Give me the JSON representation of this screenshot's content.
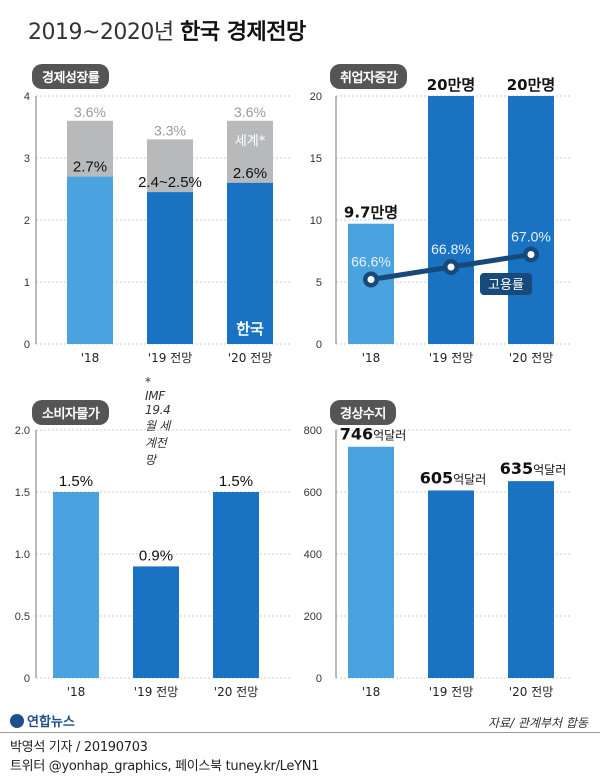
{
  "title": {
    "years": "2019~2020년",
    "bold": "한국 경제전망"
  },
  "colors": {
    "light_blue": "#4aa3df",
    "dark_blue": "#1a73c2",
    "gray": "#b8b9bb",
    "line": "#174a7a",
    "grid": "#bfbfbf"
  },
  "chart_data": [
    {
      "id": "gdp",
      "type": "bar",
      "title": "경제성장률",
      "categories": [
        "'18",
        "'19 전망",
        "'20 전망"
      ],
      "series": [
        {
          "name": "한국",
          "values": [
            2.7,
            2.45,
            2.6
          ],
          "labels": [
            "2.7%",
            "2.4~2.5%",
            "2.6%"
          ]
        },
        {
          "name": "세계*",
          "values": [
            3.6,
            3.3,
            3.6
          ],
          "labels": [
            "3.6%",
            "3.3%",
            "3.6%"
          ]
        }
      ],
      "yticks": [
        "0",
        "1",
        "2",
        "3",
        "4"
      ],
      "ylim": [
        0,
        4
      ],
      "note": "* IMF 19.4월 세계전망"
    },
    {
      "id": "employment",
      "type": "bar+line",
      "title": "취업자증감",
      "categories": [
        "'18",
        "'19 전망",
        "'20 전망"
      ],
      "bars": {
        "values": [
          9.7,
          20,
          20
        ],
        "labels": [
          "9.7만명",
          "20만명",
          "20만명"
        ]
      },
      "line": {
        "name": "고용률",
        "values": [
          66.6,
          66.8,
          67.0
        ],
        "labels": [
          "66.6%",
          "66.8%",
          "67.0%"
        ]
      },
      "yticks": [
        "0",
        "5",
        "10",
        "15",
        "20"
      ],
      "ylim": [
        0,
        20
      ]
    },
    {
      "id": "cpi",
      "type": "bar",
      "title": "소비자물가",
      "categories": [
        "'18",
        "'19 전망",
        "'20 전망"
      ],
      "values": [
        1.5,
        0.9,
        1.5
      ],
      "labels": [
        "1.5%",
        "0.9%",
        "1.5%"
      ],
      "yticks": [
        "0",
        "0.5",
        "1.0",
        "1.5",
        "2.0"
      ],
      "ylim": [
        0,
        2.0
      ]
    },
    {
      "id": "current_account",
      "type": "bar",
      "title": "경상수지",
      "categories": [
        "'18",
        "'19 전망",
        "'20 전망"
      ],
      "values": [
        746,
        605,
        635
      ],
      "labels": [
        {
          "num": "746",
          "unit": "억달러"
        },
        {
          "num": "605",
          "unit": "억달러"
        },
        {
          "num": "635",
          "unit": "억달러"
        }
      ],
      "yticks": [
        "0",
        "200",
        "400",
        "600",
        "800"
      ],
      "ylim": [
        0,
        800
      ]
    }
  ],
  "source": "자료/ 관계부처 합동",
  "logo": "연합뉴스",
  "footer": {
    "line1": "박영석 기자 /  20190703",
    "line2": "트위터 @yonhap_graphics, 페이스북 tuney.kr/LeYN1"
  }
}
